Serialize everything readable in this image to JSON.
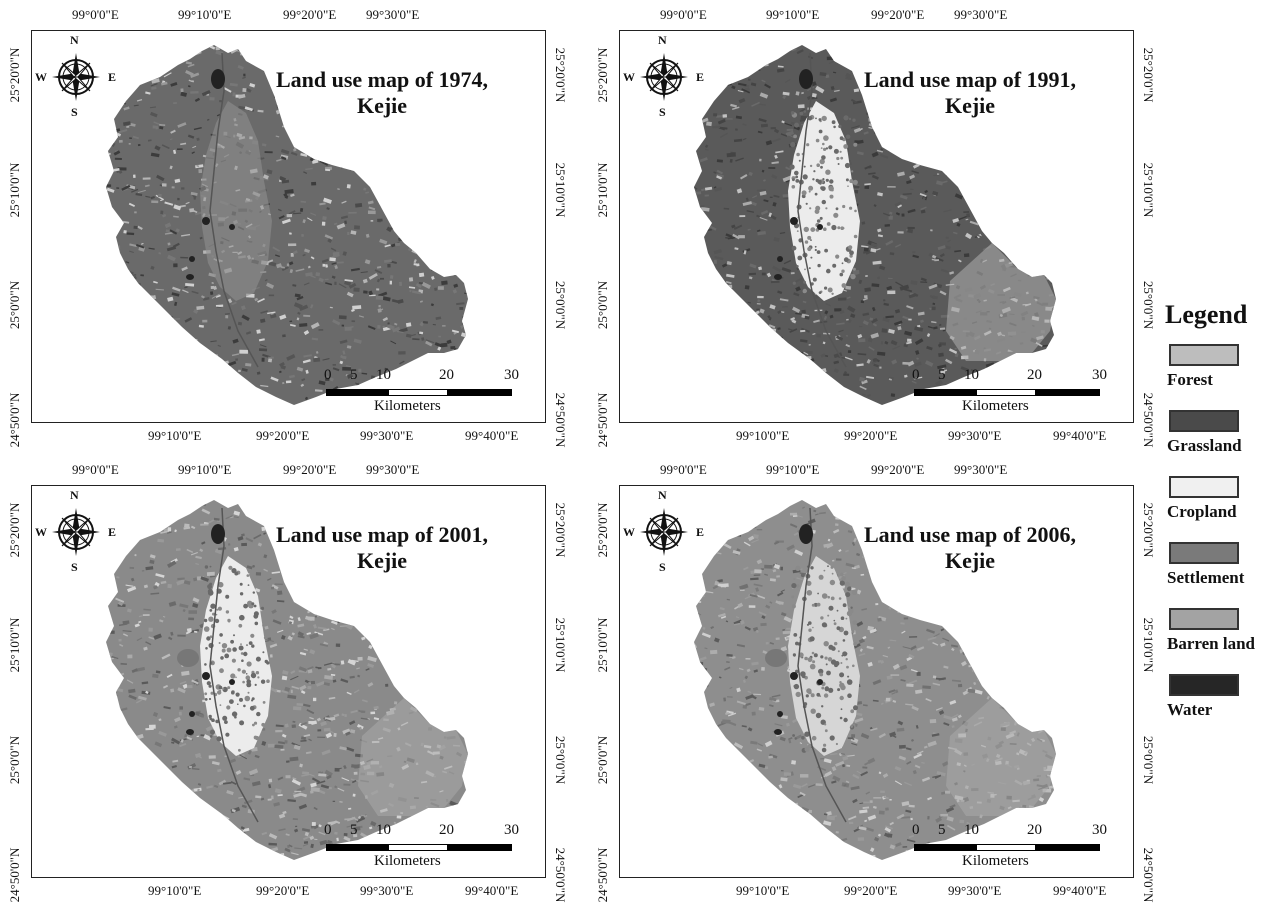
{
  "panels": [
    {
      "title_line1": "Land use map of 1974,",
      "title_line2": "Kejie",
      "style": "dark"
    },
    {
      "title_line1": "Land use map of 1991,",
      "title_line2": "Kejie",
      "style": "grass"
    },
    {
      "title_line1": "Land use map of 2001,",
      "title_line2": "Kejie",
      "style": "mixed"
    },
    {
      "title_line1": "Land use map of 2006,",
      "title_line2": "Kejie",
      "style": "mixed2"
    }
  ],
  "axes": {
    "top_ticks": [
      "99°0'0\"E",
      "99°10'0\"E",
      "99°20'0\"E",
      "99°30'0\"E"
    ],
    "bottom_ticks": [
      "99°10'0\"E",
      "99°20'0\"E",
      "99°30'0\"E",
      "99°40'0\"E"
    ],
    "side_ticks": [
      "25°20'0\"N",
      "25°10'0\"N",
      "25°0'0\"N",
      "24°50'0\"N"
    ]
  },
  "compass": {
    "n": "N",
    "s": "S",
    "e": "E",
    "w": "W"
  },
  "scalebar": {
    "labels": [
      "0",
      "5",
      "10",
      "20",
      "30"
    ],
    "unit": "Kilometers"
  },
  "legend": {
    "title": "Legend",
    "items": [
      {
        "label": "Forest",
        "color": "#bdbdbd"
      },
      {
        "label": "Grassland",
        "color": "#4a4a4a"
      },
      {
        "label": "Cropland",
        "color": "#f0f0f0"
      },
      {
        "label": "Settlement",
        "color": "#7a7a7a"
      },
      {
        "label": "Barren land",
        "color": "#a3a3a3"
      },
      {
        "label": "Water",
        "color": "#262626"
      }
    ]
  }
}
